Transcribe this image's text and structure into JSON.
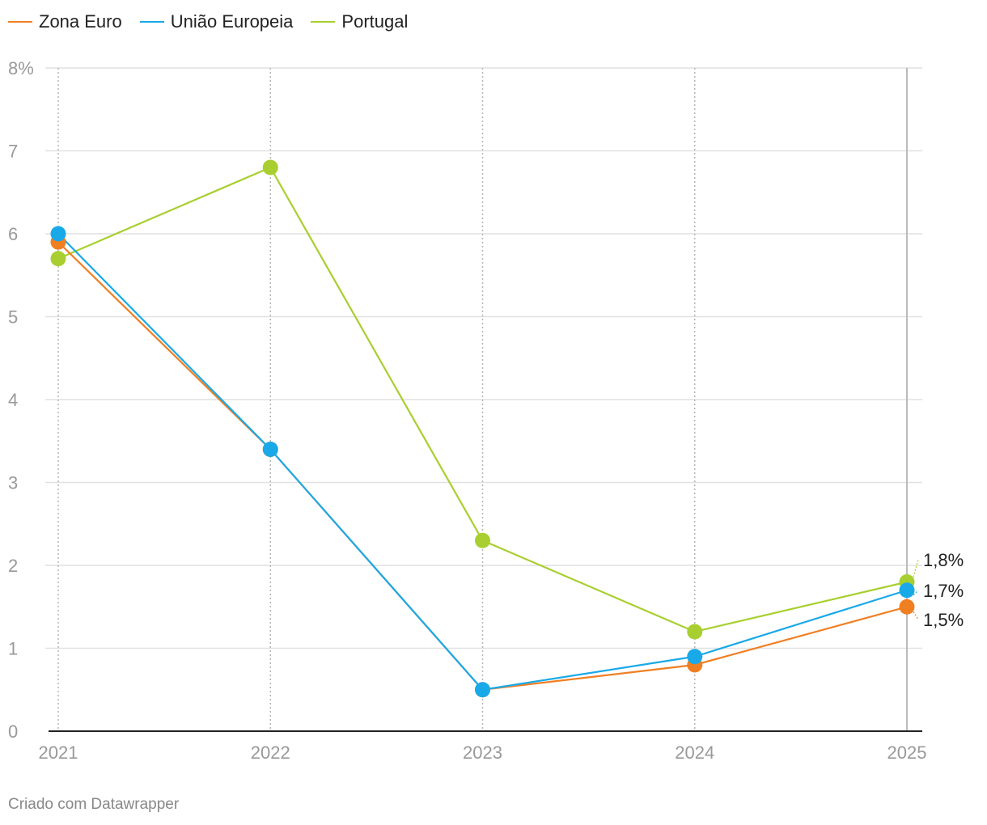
{
  "chart_data": {
    "type": "line",
    "categories": [
      "2021",
      "2022",
      "2023",
      "2024",
      "2025"
    ],
    "series": [
      {
        "name": "Zona Euro",
        "color": "#f07f22",
        "values": [
          5.9,
          3.4,
          0.5,
          0.8,
          1.5
        ]
      },
      {
        "name": "União Europeia",
        "color": "#1aa9e8",
        "values": [
          6.0,
          3.4,
          0.5,
          0.9,
          1.7
        ]
      },
      {
        "name": "Portugal",
        "color": "#a8cf2f",
        "values": [
          5.7,
          6.8,
          2.3,
          1.2,
          1.8
        ]
      }
    ],
    "y_ticks": [
      "0",
      "1",
      "2",
      "3",
      "4",
      "5",
      "6",
      "7",
      "8%"
    ],
    "ylim": [
      0,
      8
    ],
    "end_labels": {
      "Portugal": "1,8%",
      "União Europeia": "1,7%",
      "Zona Euro": "1,5%"
    },
    "grid": true,
    "legend_position": "top-left",
    "title": "",
    "xlabel": "",
    "ylabel": ""
  },
  "footer": {
    "credit": "Criado com Datawrapper"
  }
}
